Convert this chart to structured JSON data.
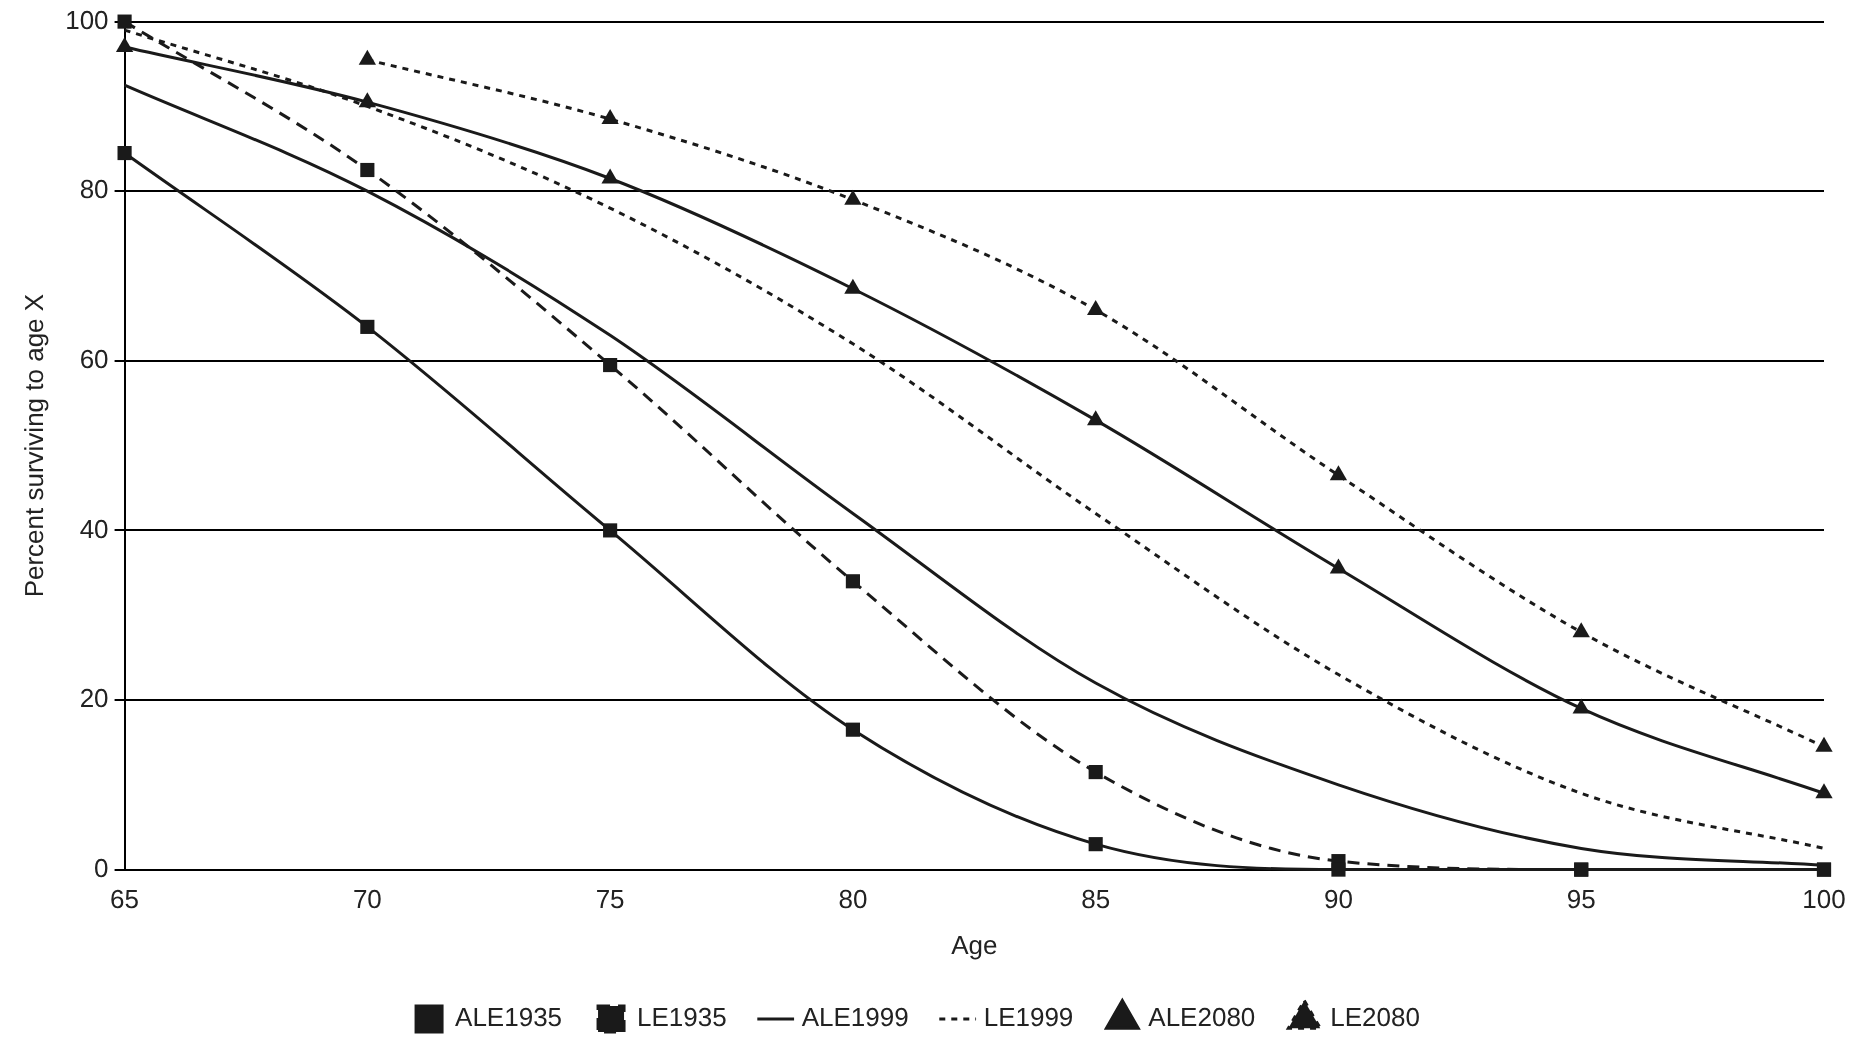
{
  "chart_data": {
    "type": "line",
    "xlabel": "Age",
    "ylabel": "Percent surviving to age X",
    "x": [
      65,
      70,
      75,
      80,
      85,
      90,
      95,
      100
    ],
    "xlim": [
      65,
      100
    ],
    "xticks": [
      65,
      70,
      75,
      80,
      85,
      90,
      95,
      100
    ],
    "ylim": [
      0,
      100
    ],
    "yticks": [
      0,
      20,
      40,
      60,
      80,
      100
    ],
    "grid": "y",
    "legend": "bottom",
    "series": [
      {
        "name": "ALE1935",
        "color": "#1a1a1a",
        "marker": "square",
        "line_style": "solid",
        "values": [
          84.5,
          64,
          40,
          16.5,
          3,
          0,
          0,
          0
        ]
      },
      {
        "name": "LE1935",
        "color": "#1a1a1a",
        "marker": "square",
        "line_style": "dashed",
        "values": [
          100,
          82.5,
          59.5,
          34,
          11.5,
          1,
          0,
          0
        ]
      },
      {
        "name": "ALE1999",
        "color": "#1a1a1a",
        "marker": "none",
        "line_style": "solid",
        "values": [
          92.5,
          80,
          63,
          42,
          22,
          10,
          2.5,
          0.5
        ]
      },
      {
        "name": "LE1999",
        "color": "#1a1a1a",
        "marker": "none",
        "line_style": "dotted",
        "values": [
          99,
          90,
          78,
          62,
          42,
          23,
          9,
          2.5
        ]
      },
      {
        "name": "ALE2080",
        "color": "#1a1a1a",
        "marker": "triangle",
        "line_style": "solid",
        "values": [
          97,
          90.5,
          81.5,
          68.5,
          53,
          35.5,
          19,
          9
        ]
      },
      {
        "name": "LE2080",
        "color": "#1a1a1a",
        "marker": "triangle",
        "line_style": "dotted",
        "values": [
          null,
          95.5,
          88.5,
          79,
          66,
          46.5,
          28,
          14.5
        ]
      }
    ]
  }
}
